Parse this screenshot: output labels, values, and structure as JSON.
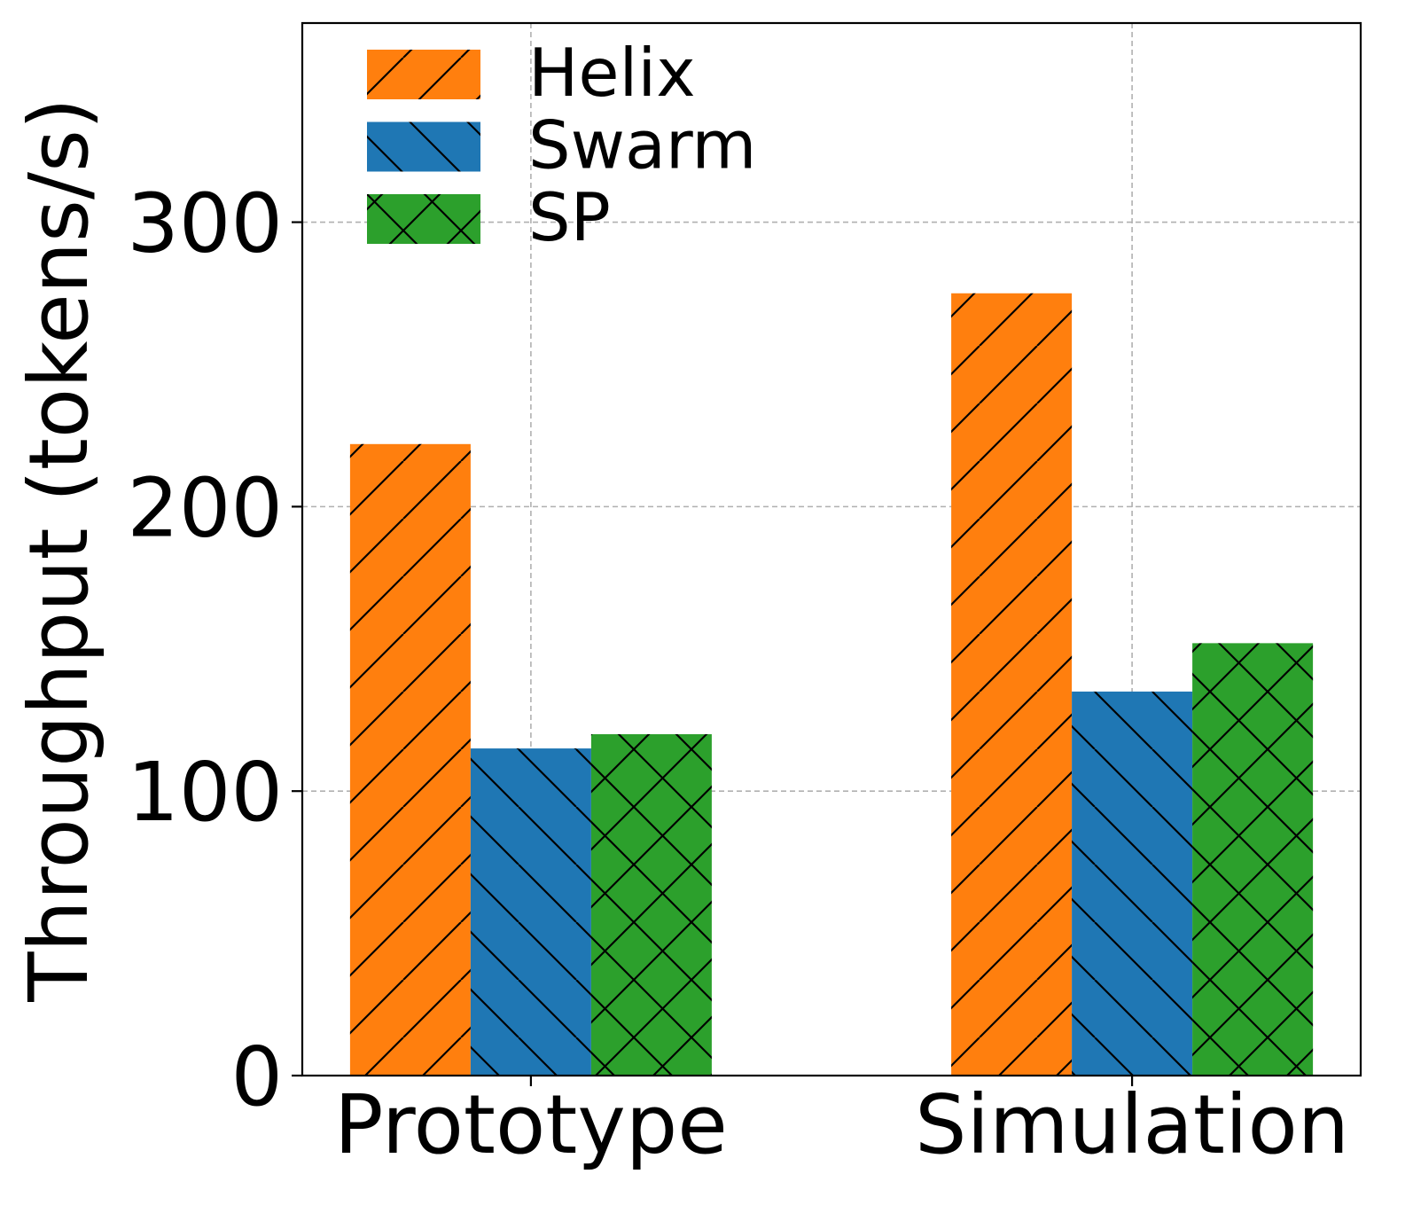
{
  "chart_data": {
    "type": "bar",
    "title": "",
    "xlabel": "",
    "ylabel": "Throughput (tokens/s)",
    "categories": [
      "Prototype",
      "Simulation"
    ],
    "series": [
      {
        "name": "Helix",
        "values": [
          222,
          275
        ],
        "color": "#ff7f0e",
        "hatch": "forward-diagonal"
      },
      {
        "name": "Swarm",
        "values": [
          115,
          135
        ],
        "color": "#1f77b4",
        "hatch": "back-diagonal"
      },
      {
        "name": "SP",
        "values": [
          120,
          152
        ],
        "color": "#2ca02c",
        "hatch": "cross"
      }
    ],
    "ylim": [
      0,
      370
    ],
    "yticks": [
      0,
      100,
      200,
      300
    ],
    "ytick_labels": [
      "0",
      "100",
      "200",
      "300"
    ],
    "grid": true,
    "legend_position": "top-left"
  }
}
